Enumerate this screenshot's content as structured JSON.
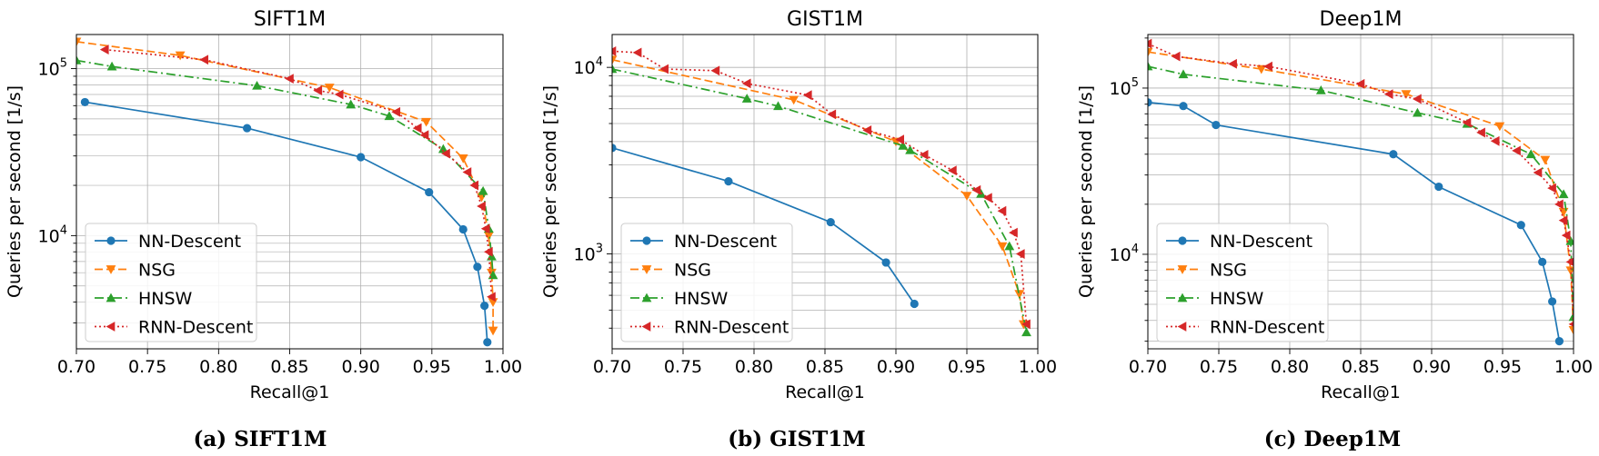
{
  "colors": {
    "nn_descent": "#1f77b4",
    "nsg": "#ff7f0e",
    "hnsw": "#2ca02c",
    "rnn_descent": "#d62728"
  },
  "series_styles": [
    {
      "name": "NN-Descent",
      "color": "#1f77b4",
      "dash": "",
      "marker": "circle"
    },
    {
      "name": "NSG",
      "color": "#ff7f0e",
      "dash": "9,4",
      "marker": "triangle-down"
    },
    {
      "name": "HNSW",
      "color": "#2ca02c",
      "dash": "10,4,2,4",
      "marker": "triangle-up"
    },
    {
      "name": "RNN-Descent",
      "color": "#d62728",
      "dash": "2,3",
      "marker": "triangle-left"
    }
  ],
  "captions": [
    "(a) SIFT1M",
    "(b) GIST1M",
    "(c) Deep1M"
  ],
  "chart_data": [
    {
      "type": "line",
      "title": "SIFT1M",
      "xlabel": "Recall@1",
      "ylabel": "Queries per second [1/s]",
      "yscale": "log",
      "xlim": [
        0.7,
        1.0
      ],
      "ylim": [
        2100,
        160000
      ],
      "xticks": [
        "0.70",
        "0.75",
        "0.80",
        "0.85",
        "0.90",
        "0.95",
        "1.00"
      ],
      "yticks": [
        {
          "value": 10000,
          "label": "10^4"
        },
        {
          "value": 100000,
          "label": "10^5"
        }
      ],
      "grid": true,
      "legend": "lower-left",
      "series": [
        {
          "name": "NN-Descent",
          "x": [
            0.706,
            0.82,
            0.9,
            0.948,
            0.972,
            0.982,
            0.987,
            0.989
          ],
          "y": [
            63000,
            44000,
            29500,
            18200,
            10900,
            6500,
            3800,
            2300
          ]
        },
        {
          "name": "NSG",
          "x": [
            0.7,
            0.773,
            0.878,
            0.946,
            0.972,
            0.985,
            0.99,
            0.992,
            0.993,
            0.993
          ],
          "y": [
            145000,
            120000,
            77000,
            48000,
            29000,
            17000,
            10000,
            6000,
            4000,
            2700
          ]
        },
        {
          "name": "HNSW",
          "x": [
            0.7,
            0.725,
            0.827,
            0.893,
            0.92,
            0.958,
            0.986,
            0.99,
            0.992,
            0.993
          ],
          "y": [
            112000,
            103000,
            79000,
            61000,
            52000,
            33000,
            18500,
            11000,
            7500,
            5800
          ]
        },
        {
          "name": "RNN-Descent",
          "x": [
            0.72,
            0.79,
            0.85,
            0.87,
            0.885,
            0.925,
            0.94,
            0.945,
            0.96,
            0.975,
            0.98,
            0.985,
            0.988,
            0.99,
            0.992
          ],
          "y": [
            130000,
            113000,
            87000,
            74000,
            70000,
            55000,
            44000,
            40000,
            31000,
            24000,
            20000,
            15000,
            11000,
            8000,
            4300
          ]
        }
      ]
    },
    {
      "type": "line",
      "title": "GIST1M",
      "xlabel": "Recall@1",
      "ylabel": "Queries per second [1/s]",
      "yscale": "log",
      "xlim": [
        0.7,
        1.0
      ],
      "ylim": [
        310,
        15000
      ],
      "xticks": [
        "0.70",
        "0.75",
        "0.80",
        "0.85",
        "0.90",
        "0.95",
        "1.00"
      ],
      "yticks": [
        {
          "value": 1000,
          "label": "10^3"
        },
        {
          "value": 10000,
          "label": "10^4"
        }
      ],
      "grid": true,
      "legend": "lower-left",
      "series": [
        {
          "name": "NN-Descent",
          "x": [
            0.7,
            0.782,
            0.854,
            0.893,
            0.913
          ],
          "y": [
            3700,
            2450,
            1480,
            900,
            540
          ]
        },
        {
          "name": "NSG",
          "x": [
            0.7,
            0.828,
            0.9,
            0.95,
            0.975,
            0.987,
            0.99
          ],
          "y": [
            11000,
            6700,
            4000,
            2050,
            1100,
            610,
            420
          ]
        },
        {
          "name": "HNSW",
          "x": [
            0.7,
            0.795,
            0.817,
            0.905,
            0.91,
            0.96,
            0.98,
            0.992
          ],
          "y": [
            9800,
            6800,
            6200,
            3800,
            3600,
            2100,
            1100,
            380
          ]
        },
        {
          "name": "RNN-Descent",
          "x": [
            0.7,
            0.718,
            0.737,
            0.773,
            0.795,
            0.838,
            0.855,
            0.88,
            0.903,
            0.92,
            0.94,
            0.957,
            0.965,
            0.975,
            0.983,
            0.988,
            0.992
          ],
          "y": [
            12200,
            12000,
            9800,
            9600,
            8200,
            7100,
            5600,
            4600,
            4100,
            3400,
            2800,
            2200,
            2000,
            1700,
            1300,
            1000,
            420
          ]
        }
      ]
    },
    {
      "type": "line",
      "title": "Deep1M",
      "xlabel": "Recall@1",
      "ylabel": "Queries per second [1/s]",
      "yscale": "log",
      "xlim": [
        0.7,
        1.0
      ],
      "ylim": [
        2700,
        210000
      ],
      "xticks": [
        "0.70",
        "0.75",
        "0.80",
        "0.85",
        "0.90",
        "0.95",
        "1.00"
      ],
      "yticks": [
        {
          "value": 10000,
          "label": "10^4"
        },
        {
          "value": 100000,
          "label": "10^5"
        }
      ],
      "grid": true,
      "legend": "lower-left",
      "series": [
        {
          "name": "NN-Descent",
          "x": [
            0.7,
            0.725,
            0.748,
            0.873,
            0.905,
            0.963,
            0.978,
            0.985,
            0.99
          ],
          "y": [
            82000,
            78000,
            60000,
            40000,
            25500,
            15000,
            9000,
            5200,
            3000
          ]
        },
        {
          "name": "NSG",
          "x": [
            0.7,
            0.78,
            0.882,
            0.948,
            0.98,
            0.993,
            0.998,
            1.0
          ],
          "y": [
            165000,
            130000,
            92000,
            59000,
            37000,
            18000,
            8000,
            3500
          ]
        },
        {
          "name": "HNSW",
          "x": [
            0.7,
            0.725,
            0.822,
            0.89,
            0.925,
            0.97,
            0.993,
            0.998,
            1.0
          ],
          "y": [
            135000,
            121000,
            97000,
            71000,
            61000,
            40000,
            23000,
            12000,
            4200
          ]
        },
        {
          "name": "RNN-Descent",
          "x": [
            0.7,
            0.72,
            0.76,
            0.785,
            0.85,
            0.87,
            0.89,
            0.925,
            0.935,
            0.945,
            0.96,
            0.975,
            0.985,
            0.99,
            0.993,
            0.995,
            0.998,
            1.0
          ],
          "y": [
            185000,
            155000,
            140000,
            135000,
            106000,
            92000,
            86000,
            62000,
            54000,
            48000,
            42000,
            31000,
            25000,
            20000,
            16000,
            13000,
            9000,
            3800
          ]
        }
      ]
    }
  ]
}
